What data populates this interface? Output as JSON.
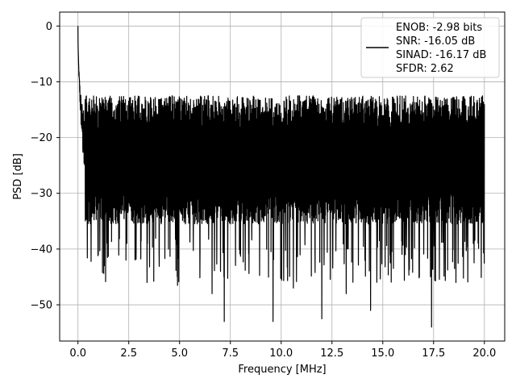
{
  "chart_data": {
    "type": "line",
    "title": "",
    "xlabel": "Frequency [MHz]",
    "ylabel": "PSD [dB]",
    "xlim": [
      -0.9,
      21.0
    ],
    "ylim": [
      -56.5,
      2.5
    ],
    "xticks": [
      0.0,
      2.5,
      5.0,
      7.5,
      10.0,
      12.5,
      15.0,
      17.5,
      20.0
    ],
    "xtick_labels": [
      "0.0",
      "2.5",
      "5.0",
      "7.5",
      "10.0",
      "12.5",
      "15.0",
      "17.5",
      "20.0"
    ],
    "yticks": [
      0,
      -10,
      -20,
      -30,
      -40,
      -50
    ],
    "ytick_labels": [
      "0",
      "−10",
      "−20",
      "−30",
      "−40",
      "−50"
    ],
    "grid": true,
    "legend_position": "top-right",
    "series_color": "#000000",
    "series": [
      {
        "legend_lines": [
          "ENOB: -2.98 bits",
          "SNR: -16.05 dB",
          "SINAD: -16.17 dB",
          "SFDR: 2.62"
        ],
        "x_range": [
          0.0,
          20.0
        ],
        "peak": {
          "x": 0.0,
          "y": 0.0
        },
        "noise_floor_band": [
          -34,
          -14
        ],
        "notable_dips": [
          {
            "x": 7.2,
            "y": -53
          },
          {
            "x": 9.6,
            "y": -53
          },
          {
            "x": 12.0,
            "y": -52.5
          },
          {
            "x": 14.4,
            "y": -51
          },
          {
            "x": 17.4,
            "y": -54
          },
          {
            "x": 6.6,
            "y": -48
          },
          {
            "x": 3.4,
            "y": -46
          },
          {
            "x": 4.9,
            "y": -46.5
          },
          {
            "x": 1.3,
            "y": -43
          },
          {
            "x": 10.6,
            "y": -47
          },
          {
            "x": 13.2,
            "y": -48
          },
          {
            "x": 16.8,
            "y": -45
          },
          {
            "x": 18.6,
            "y": -46
          }
        ]
      }
    ]
  }
}
